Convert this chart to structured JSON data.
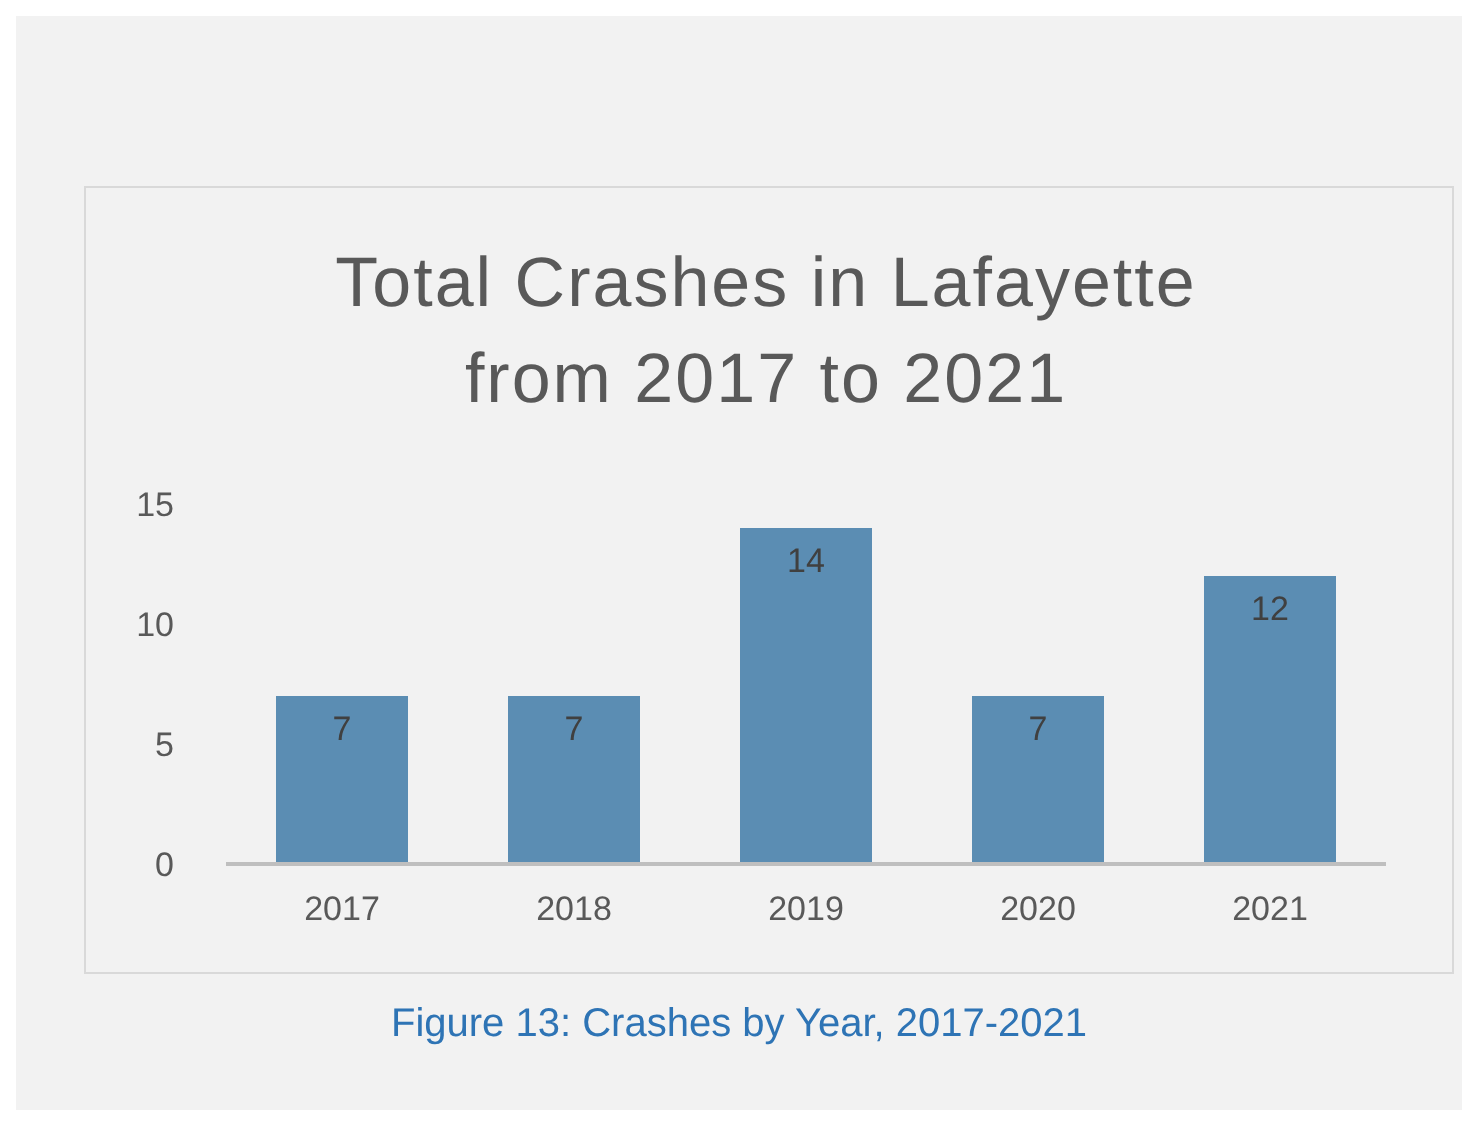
{
  "chart_data": {
    "type": "bar",
    "title": "Total Crashes in Lafayette from 2017 to 2021",
    "categories": [
      "2017",
      "2018",
      "2019",
      "2020",
      "2021"
    ],
    "values": [
      7,
      7,
      14,
      7,
      12
    ],
    "color": "#5b8db3",
    "ylim": [
      0,
      15
    ],
    "yticks": [
      0,
      5,
      10,
      15
    ],
    "grid": false,
    "data_labels": true,
    "annotations": [
      "Figure 13: Crashes by Year, 2017-2021"
    ]
  }
}
